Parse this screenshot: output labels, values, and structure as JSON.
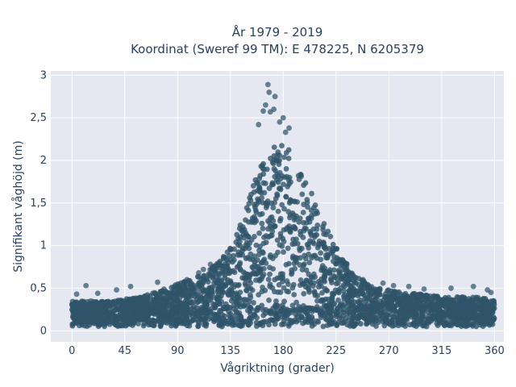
{
  "chart_data": {
    "type": "scatter",
    "title_line1": "År 1979 - 2019",
    "title_line2": "Koordinat (Sweref 99 TM): E 478225, N 6205379",
    "xlabel": "Vågriktning (grader)",
    "ylabel": "Signifikant våghöjd (m)",
    "xlim": [
      -18,
      368
    ],
    "ylim": [
      -0.13,
      3.05
    ],
    "xticks": [
      0,
      45,
      90,
      135,
      180,
      225,
      270,
      315,
      360
    ],
    "xtick_labels": [
      "0",
      "45",
      "90",
      "135",
      "180",
      "225",
      "270",
      "315",
      "360"
    ],
    "yticks": [
      0,
      0.5,
      1,
      1.5,
      2,
      2.5,
      3
    ],
    "ytick_labels": [
      "0",
      "0,5",
      "1",
      "1,5",
      "2",
      "2,5",
      "3"
    ],
    "grid": true,
    "marker_color": "#2f5469",
    "background_color": "#e5e8f0",
    "envelope": {
      "direction": [
        0,
        30,
        60,
        90,
        110,
        125,
        135,
        145,
        155,
        165,
        172,
        180,
        188,
        195,
        205,
        215,
        225,
        240,
        260,
        285,
        315,
        345,
        360
      ],
      "upper_height": [
        0.35,
        0.35,
        0.4,
        0.55,
        0.65,
        0.8,
        1.0,
        1.3,
        1.75,
        2.05,
        2.2,
        2.25,
        2.1,
        1.85,
        1.6,
        1.25,
        1.0,
        0.65,
        0.5,
        0.45,
        0.4,
        0.4,
        0.35
      ],
      "lower_height": [
        0.05,
        0.05,
        0.05,
        0.05,
        0.05,
        0.05,
        0.05,
        0.05,
        0.05,
        0.05,
        0.05,
        0.05,
        0.05,
        0.05,
        0.05,
        0.05,
        0.05,
        0.05,
        0.05,
        0.05,
        0.05,
        0.05,
        0.05
      ]
    },
    "outlier_points": [
      {
        "x": 167,
        "y": 2.89
      },
      {
        "x": 168,
        "y": 2.8
      },
      {
        "x": 173,
        "y": 2.75
      },
      {
        "x": 165,
        "y": 2.65
      },
      {
        "x": 172,
        "y": 2.6
      },
      {
        "x": 163,
        "y": 2.58
      },
      {
        "x": 169,
        "y": 2.57
      },
      {
        "x": 180,
        "y": 2.5
      },
      {
        "x": 177,
        "y": 2.45
      },
      {
        "x": 159,
        "y": 2.42
      },
      {
        "x": 185,
        "y": 2.38
      },
      {
        "x": 182,
        "y": 2.33
      },
      {
        "x": 12,
        "y": 0.53
      },
      {
        "x": 50,
        "y": 0.52
      },
      {
        "x": 38,
        "y": 0.48
      },
      {
        "x": 73,
        "y": 0.57
      },
      {
        "x": 98,
        "y": 0.6
      },
      {
        "x": 108,
        "y": 0.68
      },
      {
        "x": 112,
        "y": 0.72
      },
      {
        "x": 118,
        "y": 0.78
      },
      {
        "x": 287,
        "y": 0.52
      },
      {
        "x": 300,
        "y": 0.49
      },
      {
        "x": 323,
        "y": 0.5
      },
      {
        "x": 342,
        "y": 0.52
      },
      {
        "x": 354,
        "y": 0.48
      },
      {
        "x": 357,
        "y": 0.45
      },
      {
        "x": 4,
        "y": 0.43
      },
      {
        "x": 22,
        "y": 0.44
      },
      {
        "x": 235,
        "y": 0.7
      },
      {
        "x": 248,
        "y": 0.6
      },
      {
        "x": 265,
        "y": 0.56
      },
      {
        "x": 274,
        "y": 0.53
      }
    ]
  }
}
